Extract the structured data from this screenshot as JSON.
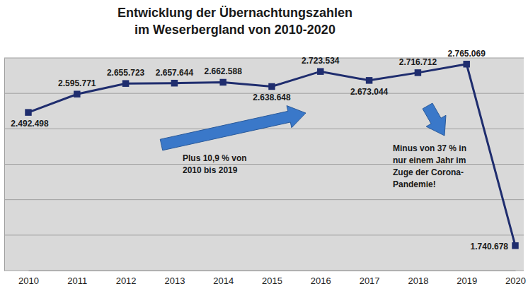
{
  "chart_data": {
    "type": "line",
    "title": [
      "Entwicklung der Übernachtungszahlen",
      "im Weserbergland von 2010-2020"
    ],
    "categories": [
      "2010",
      "2011",
      "2012",
      "2013",
      "2014",
      "2015",
      "2016",
      "2017",
      "2018",
      "2019",
      "2020"
    ],
    "values": [
      2492498,
      2595771,
      2655723,
      2657644,
      2662588,
      2638648,
      2723534,
      2673044,
      2716712,
      2765069,
      1740678
    ],
    "value_labels": [
      "2.492.498",
      "2.595.771",
      "2.655.723",
      "2.657.644",
      "2.662.588",
      "2.638.648",
      "2.723.534",
      "2.673.044",
      "2.716.712",
      "2.765.069",
      "1.740.678"
    ],
    "color": "#1f2d6e",
    "marker": "square",
    "line_style": "solid",
    "data_labels": true,
    "grid": true,
    "tick_labels": "x",
    "ylim": [
      1600000,
      2800000
    ],
    "yticks": [
      1600000,
      1800000,
      2000000,
      2200000,
      2400000,
      2600000,
      2800000
    ],
    "annotations": [
      {
        "lines": [
          "Plus 10,9 % von",
          "2010 bis 2019"
        ]
      },
      {
        "lines": [
          "Minus von 37 % in",
          "nur einem Jahr im",
          "Zuge der Corona-",
          "Pandemie!"
        ]
      }
    ]
  }
}
